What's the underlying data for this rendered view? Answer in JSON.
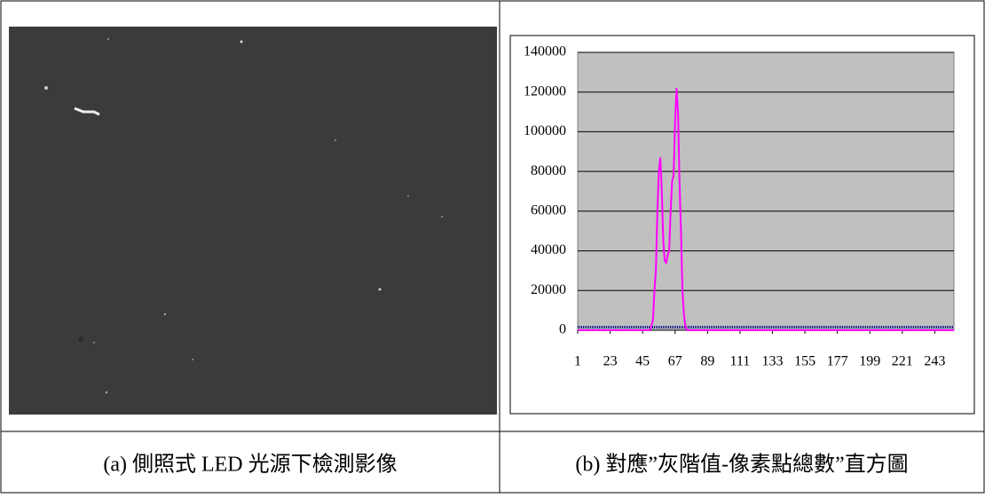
{
  "captions": [
    "(a) 側照式 LED 光源下檢測影像",
    "(b) 對應”灰階值-像素點總數”直方圖"
  ],
  "chart_data": {
    "type": "line",
    "xlim": [
      1,
      256
    ],
    "xticks": [
      1,
      23,
      45,
      67,
      89,
      111,
      133,
      155,
      177,
      199,
      221,
      243
    ],
    "ylim": [
      0,
      140000
    ],
    "yticks": [
      0,
      20000,
      40000,
      60000,
      80000,
      100000,
      120000,
      140000
    ],
    "grid": true,
    "series": [
      {
        "color": "#000080",
        "x": [
          1,
          256
        ],
        "values": [
          1500,
          1500
        ]
      },
      {
        "color": "#ff00ff",
        "x": [
          1,
          50,
          52,
          53,
          54,
          55,
          56,
          57,
          58,
          59,
          60,
          61,
          62,
          63,
          64,
          65,
          66,
          67,
          68,
          69,
          70,
          71,
          72,
          73,
          74,
          75,
          256
        ],
        "values": [
          0,
          0,
          5000,
          20000,
          30000,
          60000,
          80000,
          87000,
          70000,
          45000,
          35000,
          34000,
          38000,
          40000,
          60000,
          75000,
          78000,
          105000,
          122000,
          110000,
          75000,
          50000,
          20000,
          8000,
          2000,
          0,
          0
        ]
      }
    ]
  }
}
